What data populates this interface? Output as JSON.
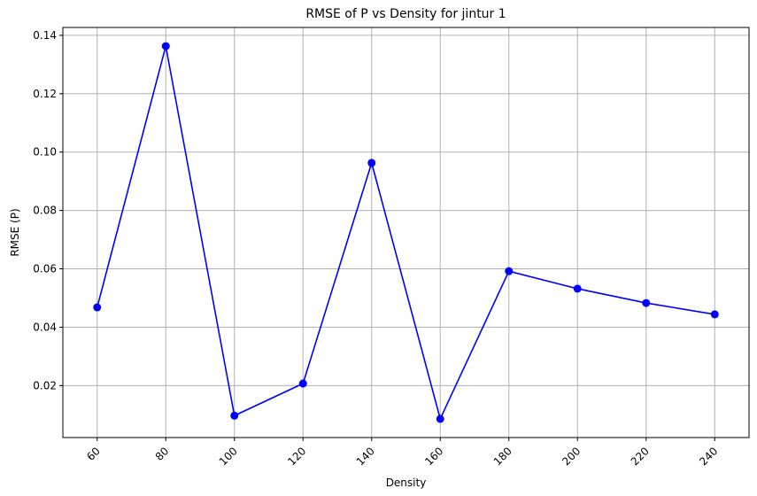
{
  "chart_data": {
    "type": "line",
    "title": "RMSE of P vs Density for jintur 1",
    "xlabel": "Density",
    "ylabel": "RMSE (P)",
    "x": [
      60,
      80,
      100,
      120,
      140,
      160,
      180,
      200,
      220,
      240
    ],
    "x_tick_labels": [
      "60",
      "80",
      "100",
      "120",
      "140",
      "160",
      "180",
      "200",
      "220",
      "240"
    ],
    "y_ticks": [
      0.02,
      0.04,
      0.06,
      0.08,
      0.1,
      0.12,
      0.14
    ],
    "y_tick_labels": [
      "0.02",
      "0.04",
      "0.06",
      "0.08",
      "0.10",
      "0.12",
      "0.14"
    ],
    "series": [
      {
        "values": [
          0.0468,
          0.1363,
          0.0097,
          0.0207,
          0.0963,
          0.0086,
          0.0592,
          0.0532,
          0.0483,
          0.0444
        ],
        "color": "#0000ff",
        "marker": "circle"
      }
    ],
    "xlim": [
      50,
      250
    ],
    "ylim": [
      0.0022,
      0.1427
    ],
    "grid": true,
    "x_tick_rotation": 45
  }
}
